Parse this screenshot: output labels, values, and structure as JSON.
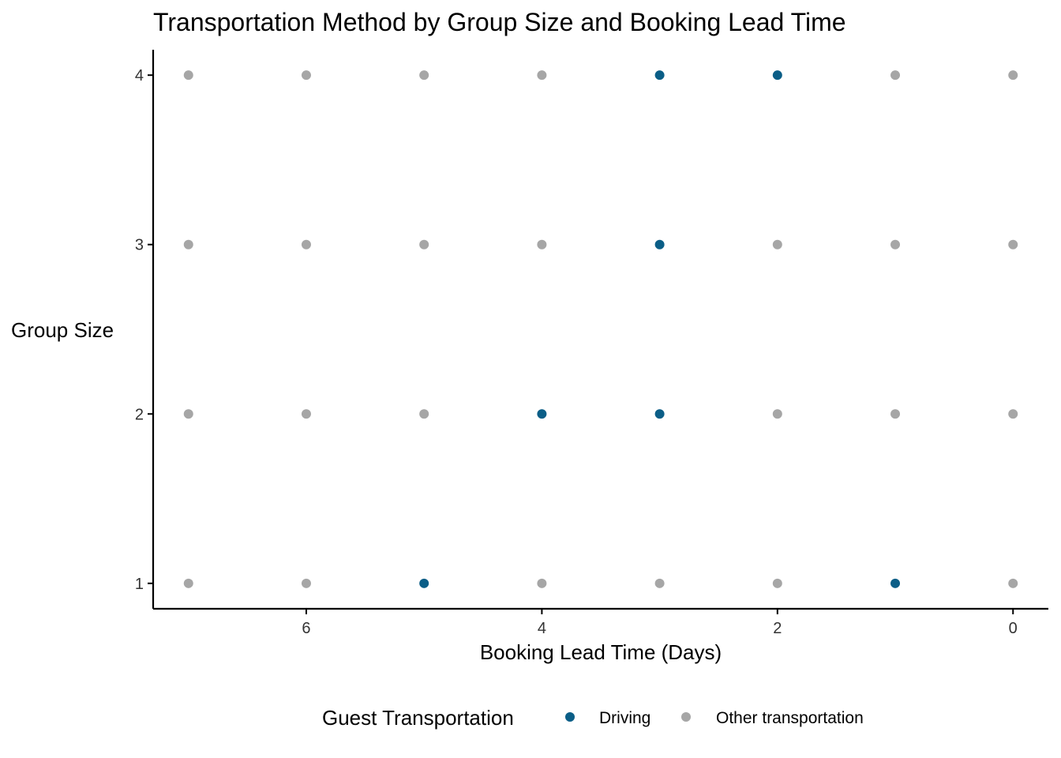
{
  "chart_data": {
    "type": "scatter",
    "title": "Transportation Method by Group Size and Booking Lead Time",
    "xlabel": "Booking Lead Time (Days)",
    "ylabel": "Group Size",
    "x_reversed": true,
    "xlim": [
      7.3,
      -0.3
    ],
    "ylim": [
      0.85,
      4.15
    ],
    "x_ticks": [
      6,
      4,
      2,
      0
    ],
    "y_ticks": [
      1,
      2,
      3,
      4
    ],
    "grid": false,
    "legend": {
      "title": "Guest Transportation",
      "position": "bottom"
    },
    "series": [
      {
        "name": "Driving",
        "color": "#0b5e87",
        "points": [
          {
            "x": 3,
            "y": 4
          },
          {
            "x": 2,
            "y": 4
          },
          {
            "x": 3,
            "y": 3
          },
          {
            "x": 4,
            "y": 2
          },
          {
            "x": 3,
            "y": 2
          },
          {
            "x": 5,
            "y": 1
          },
          {
            "x": 1,
            "y": 1
          }
        ]
      },
      {
        "name": "Other transportation",
        "color": "#a6a6a6",
        "points": [
          {
            "x": 7,
            "y": 4
          },
          {
            "x": 6,
            "y": 4
          },
          {
            "x": 5,
            "y": 4
          },
          {
            "x": 4,
            "y": 4
          },
          {
            "x": 1,
            "y": 4
          },
          {
            "x": 0,
            "y": 4
          },
          {
            "x": 7,
            "y": 3
          },
          {
            "x": 6,
            "y": 3
          },
          {
            "x": 5,
            "y": 3
          },
          {
            "x": 4,
            "y": 3
          },
          {
            "x": 2,
            "y": 3
          },
          {
            "x": 1,
            "y": 3
          },
          {
            "x": 0,
            "y": 3
          },
          {
            "x": 7,
            "y": 2
          },
          {
            "x": 6,
            "y": 2
          },
          {
            "x": 5,
            "y": 2
          },
          {
            "x": 2,
            "y": 2
          },
          {
            "x": 1,
            "y": 2
          },
          {
            "x": 0,
            "y": 2
          },
          {
            "x": 7,
            "y": 1
          },
          {
            "x": 6,
            "y": 1
          },
          {
            "x": 4,
            "y": 1
          },
          {
            "x": 3,
            "y": 1
          },
          {
            "x": 2,
            "y": 1
          },
          {
            "x": 0,
            "y": 1
          }
        ]
      }
    ]
  }
}
